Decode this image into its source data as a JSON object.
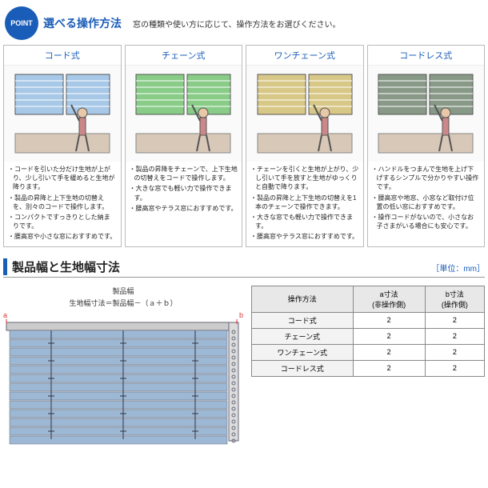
{
  "point": {
    "badge": "POINT",
    "title": "選べる操作方法",
    "subtitle": "窓の種類や使い方に応じて、操作方法をお選びください。"
  },
  "methods": [
    {
      "title": "コード式",
      "items": [
        "コードを引いた分だけ生地が上がり、少し引いて手を緩めると生地が降ります。",
        "製品の昇降と上下生地の切替えを、別々のコードで操作します。",
        "コンパクトですっきりとした納まりです。",
        "腰高窓や小さな窓におすすめです。"
      ]
    },
    {
      "title": "チェーン式",
      "items": [
        "製品の昇降をチェーンで、上下生地の切替えをコードで操作します。",
        "大きな窓でも軽い力で操作できます。",
        "腰高窓やテラス窓におすすめです。"
      ]
    },
    {
      "title": "ワンチェーン式",
      "items": [
        "チェーンを引くと生地が上がり、少し引いて手を放すと生地がゆっくりと自動で降ります。",
        "製品の昇降と上下生地の切替えを1本のチェーンで操作できます。",
        "大きな窓でも軽い力で操作できます。",
        "腰高窓やテラス窓におすすめです。"
      ]
    },
    {
      "title": "コードレス式",
      "items": [
        "ハンドルをつまんで生地を上げ下げするシンプルで分かりやすい操作です。",
        "腰高窓や地窓、小窓など取付け位置の低い窓におすすめです。",
        "操作コードがないので、小さなお子さまがいる場合にも安心です。"
      ]
    }
  ],
  "section2": {
    "title": "製品幅と生地幅寸法",
    "unit": "［単位：mm］",
    "widthLabel": "製品幅",
    "formula": "生地幅寸法＝製品幅－（ａ＋ｂ）",
    "a": "a",
    "b": "b"
  },
  "table": {
    "head": [
      "操作方法",
      "a寸法\n(非操作側)",
      "b寸法\n(操作側)"
    ],
    "rows": [
      [
        "コード式",
        "2",
        "2"
      ],
      [
        "チェーン式",
        "2",
        "2"
      ],
      [
        "ワンチェーン式",
        "2",
        "2"
      ],
      [
        "コードレス式",
        "2",
        "2"
      ]
    ]
  },
  "colors": {
    "method_illust": [
      "#a8c8e8",
      "#88cc88",
      "#d8c888",
      "#889988"
    ],
    "blind": "#9db8d4",
    "accent": "#1a5db8",
    "red": "#d33"
  }
}
